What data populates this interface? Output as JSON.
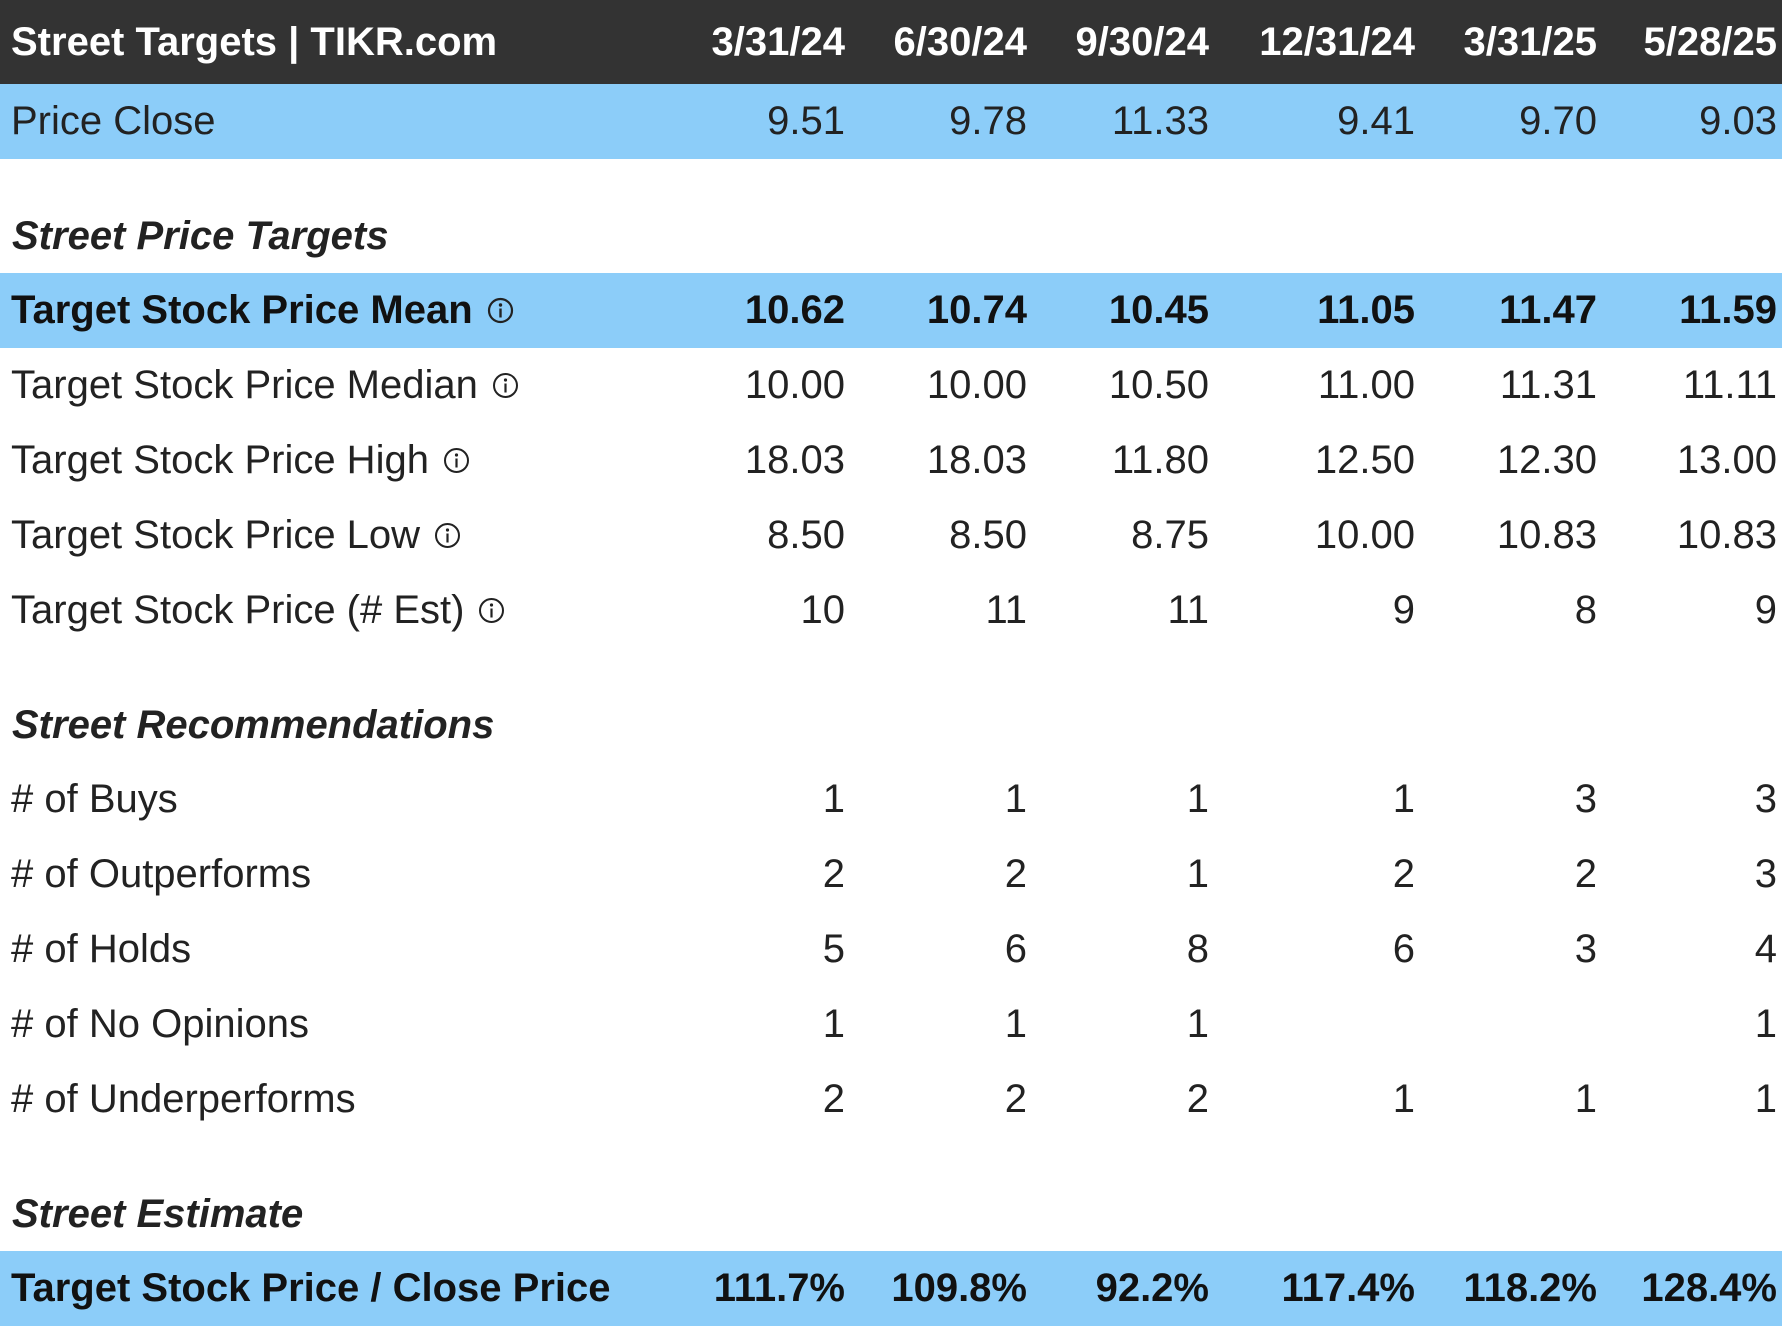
{
  "header": {
    "title": "Street Targets | TIKR.com",
    "columns": [
      "3/31/24",
      "6/30/24",
      "9/30/24",
      "12/31/24",
      "3/31/25",
      "5/28/25"
    ]
  },
  "price_close": {
    "label": "Price Close",
    "values": [
      "9.51",
      "9.78",
      "11.33",
      "9.41",
      "9.70",
      "9.03"
    ]
  },
  "sections": {
    "price_targets": "Street Price Targets",
    "recommendations": "Street Recommendations",
    "estimate": "Street Estimate"
  },
  "target_rows": [
    {
      "label": "Target Stock Price Mean",
      "values": [
        "10.62",
        "10.74",
        "10.45",
        "11.05",
        "11.47",
        "11.59"
      ],
      "icon": "info-icon"
    },
    {
      "label": "Target Stock Price Median",
      "values": [
        "10.00",
        "10.00",
        "10.50",
        "11.00",
        "11.31",
        "11.11"
      ],
      "icon": "info-icon"
    },
    {
      "label": "Target Stock Price High",
      "values": [
        "18.03",
        "18.03",
        "11.80",
        "12.50",
        "12.30",
        "13.00"
      ],
      "icon": "info-icon"
    },
    {
      "label": "Target Stock Price Low",
      "values": [
        "8.50",
        "8.50",
        "8.75",
        "10.00",
        "10.83",
        "10.83"
      ],
      "icon": "info-icon"
    },
    {
      "label": "Target Stock Price (# Est)",
      "values": [
        "10",
        "11",
        "11",
        "9",
        "8",
        "9"
      ],
      "icon": "info-icon"
    }
  ],
  "recommendation_rows": [
    {
      "label": "# of Buys",
      "values": [
        "1",
        "1",
        "1",
        "1",
        "3",
        "3"
      ]
    },
    {
      "label": "# of Outperforms",
      "values": [
        "2",
        "2",
        "1",
        "2",
        "2",
        "3"
      ]
    },
    {
      "label": "# of Holds",
      "values": [
        "5",
        "6",
        "8",
        "6",
        "3",
        "4"
      ]
    },
    {
      "label": "# of No Opinions",
      "values": [
        "1",
        "1",
        "1",
        "",
        "",
        "1"
      ]
    },
    {
      "label": "# of Underperforms",
      "values": [
        "2",
        "2",
        "2",
        "1",
        "1",
        "1"
      ]
    }
  ],
  "estimate_row": {
    "label": "Target Stock Price / Close Price",
    "values": [
      "111.7%",
      "109.8%",
      "92.2%",
      "117.4%",
      "118.2%",
      "128.4%"
    ]
  },
  "colors": {
    "header_bg": "#333333",
    "highlight_bg": "#8ccdf9",
    "text": "#222222"
  }
}
